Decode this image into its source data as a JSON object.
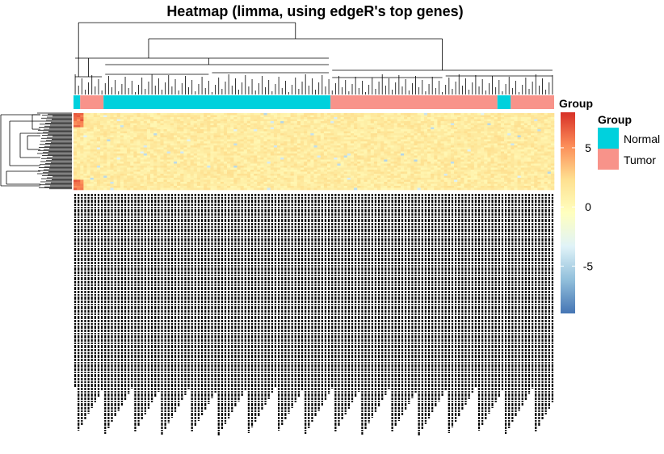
{
  "chart_data": {
    "type": "heatmap",
    "title": "Heatmap (limma, using edgeR's top genes)",
    "annotation": {
      "title": "Group",
      "column_groups": [
        {
          "group": "Normal",
          "count": 2
        },
        {
          "group": "Tumor",
          "count": 7
        },
        {
          "group": "Normal",
          "count": 68
        },
        {
          "group": "Tumor",
          "count": 50
        },
        {
          "group": "Normal",
          "count": 4
        },
        {
          "group": "Tumor",
          "count": 13
        }
      ]
    },
    "legend": {
      "title": "Group",
      "entries": [
        {
          "label": "Normal",
          "color": "#00d1dd"
        },
        {
          "label": "Tumor",
          "color": "#f8938a"
        }
      ]
    },
    "colorbar": {
      "ticks": [
        5,
        0,
        -5
      ],
      "range": [
        -9,
        8
      ],
      "colors": [
        "#4575b4",
        "#91bfdb",
        "#e0f3f8",
        "#ffffbf",
        "#fee090",
        "#fc8d59",
        "#d73027"
      ]
    }
  }
}
